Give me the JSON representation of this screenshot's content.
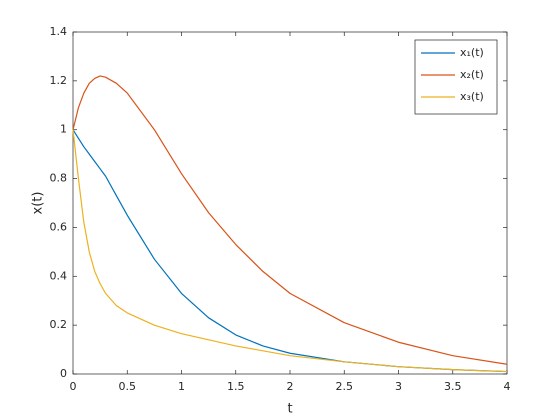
{
  "chart_data": {
    "type": "line",
    "xlabel": "t",
    "ylabel": "x(t)",
    "x": [
      0,
      0.05,
      0.1,
      0.15,
      0.2,
      0.25,
      0.3,
      0.4,
      0.5,
      0.75,
      1,
      1.25,
      1.5,
      1.75,
      2,
      2.5,
      3,
      3.5,
      4
    ],
    "series": [
      {
        "name": "x₁(t)",
        "color": "#0072BD",
        "values": [
          1,
          0.965,
          0.93,
          0.9,
          0.87,
          0.84,
          0.81,
          0.73,
          0.65,
          0.47,
          0.33,
          0.23,
          0.16,
          0.115,
          0.085,
          0.05,
          0.03,
          0.018,
          0.01
        ]
      },
      {
        "name": "x₂(t)",
        "color": "#D95319",
        "values": [
          1,
          1.09,
          1.15,
          1.19,
          1.21,
          1.22,
          1.215,
          1.19,
          1.15,
          1.0,
          0.82,
          0.66,
          0.53,
          0.42,
          0.33,
          0.21,
          0.13,
          0.075,
          0.04
        ]
      },
      {
        "name": "x₃(t)",
        "color": "#EDB120",
        "values": [
          1,
          0.8,
          0.62,
          0.5,
          0.42,
          0.37,
          0.33,
          0.28,
          0.25,
          0.2,
          0.165,
          0.14,
          0.115,
          0.095,
          0.075,
          0.05,
          0.03,
          0.018,
          0.01
        ]
      }
    ],
    "xlim": [
      0,
      4
    ],
    "xticks": [
      0,
      0.5,
      1,
      1.5,
      2,
      2.5,
      3,
      3.5,
      4
    ],
    "ylim": [
      0,
      1.4
    ],
    "yticks": [
      0,
      0.2,
      0.4,
      0.6,
      0.8,
      1,
      1.2,
      1.4
    ],
    "grid": false,
    "legend": "northeast"
  }
}
